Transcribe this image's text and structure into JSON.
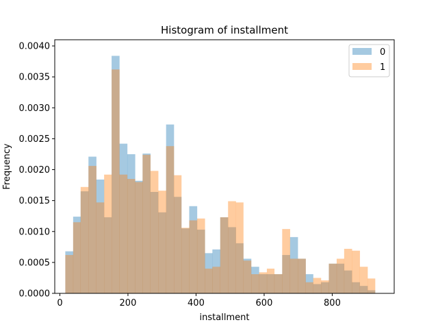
{
  "chart_data": {
    "type": "bar",
    "title": "Histogram of installment",
    "xlabel": "installment",
    "ylabel": "Frequency",
    "xlim": [
      -15,
      982
    ],
    "ylim": [
      0,
      0.0041
    ],
    "xticks": [
      0,
      200,
      400,
      600,
      800
    ],
    "yticks": [
      0.0,
      0.0005,
      0.001,
      0.0015,
      0.002,
      0.0025,
      0.003,
      0.0035,
      0.004
    ],
    "ytick_labels": [
      "0.0000",
      "0.0005",
      "0.0010",
      "0.0015",
      "0.0020",
      "0.0025",
      "0.0030",
      "0.0035",
      "0.0040"
    ],
    "legend_position": "top-right",
    "series": [
      {
        "name": "0",
        "color": "#1f77b4",
        "alpha": 0.4,
        "bins": [
          [
            16,
            39,
            0.00068
          ],
          [
            39,
            61,
            0.00124
          ],
          [
            61,
            84,
            0.00165
          ],
          [
            84,
            107,
            0.00221
          ],
          [
            107,
            130,
            0.00184
          ],
          [
            130,
            152,
            0.00123
          ],
          [
            152,
            175,
            0.00384
          ],
          [
            175,
            198,
            0.00242
          ],
          [
            198,
            221,
            0.00225
          ],
          [
            221,
            243,
            0.00182
          ],
          [
            243,
            266,
            0.00226
          ],
          [
            266,
            289,
            0.00164
          ],
          [
            289,
            312,
            0.00131
          ],
          [
            312,
            335,
            0.00273
          ],
          [
            335,
            357,
            0.00156
          ],
          [
            357,
            380,
            0.00105
          ],
          [
            380,
            403,
            0.00141
          ],
          [
            403,
            426,
            0.00103
          ],
          [
            426,
            448,
            0.00065
          ],
          [
            448,
            471,
            0.00071
          ],
          [
            471,
            494,
            0.00123
          ],
          [
            494,
            517,
            0.00107
          ],
          [
            517,
            539,
            0.00081
          ],
          [
            539,
            562,
            0.00056
          ],
          [
            562,
            585,
            0.00043
          ],
          [
            585,
            608,
            0.00031
          ],
          [
            608,
            630,
            0.00031
          ],
          [
            630,
            653,
            0.00031
          ],
          [
            653,
            676,
            0.00062
          ],
          [
            676,
            699,
            0.00091
          ],
          [
            699,
            722,
            0.00056
          ],
          [
            722,
            744,
            0.00031
          ],
          [
            744,
            767,
            0.00015
          ],
          [
            767,
            790,
            0.00018
          ],
          [
            790,
            813,
            0.00048
          ],
          [
            813,
            835,
            0.00048
          ],
          [
            835,
            858,
            0.00037
          ],
          [
            858,
            881,
            0.00018
          ],
          [
            881,
            904,
            0.00012
          ],
          [
            904,
            926,
            5e-05
          ]
        ]
      },
      {
        "name": "1",
        "color": "#ff7f0e",
        "alpha": 0.4,
        "bins": [
          [
            16,
            39,
            0.00062
          ],
          [
            39,
            61,
            0.00115
          ],
          [
            61,
            84,
            0.00172
          ],
          [
            84,
            107,
            0.00206
          ],
          [
            107,
            130,
            0.00147
          ],
          [
            130,
            152,
            0.00192
          ],
          [
            152,
            175,
            0.00362
          ],
          [
            175,
            198,
            0.00192
          ],
          [
            198,
            221,
            0.00185
          ],
          [
            221,
            243,
            0.0018
          ],
          [
            243,
            266,
            0.00224
          ],
          [
            266,
            289,
            0.00198
          ],
          [
            289,
            312,
            0.00166
          ],
          [
            312,
            335,
            0.00238
          ],
          [
            335,
            357,
            0.00191
          ],
          [
            357,
            380,
            0.00106
          ],
          [
            380,
            403,
            0.00118
          ],
          [
            403,
            426,
            0.00121
          ],
          [
            426,
            448,
            0.0004
          ],
          [
            448,
            471,
            0.00043
          ],
          [
            471,
            494,
            0.00123
          ],
          [
            494,
            517,
            0.00149
          ],
          [
            517,
            539,
            0.00147
          ],
          [
            539,
            562,
            0.00053
          ],
          [
            562,
            585,
            0.00031
          ],
          [
            585,
            608,
            0.00034
          ],
          [
            608,
            630,
            0.0004
          ],
          [
            630,
            653,
            0.00031
          ],
          [
            653,
            676,
            0.00104
          ],
          [
            676,
            699,
            0.00056
          ],
          [
            699,
            722,
            0.00056
          ],
          [
            722,
            744,
            0.00018
          ],
          [
            744,
            767,
            0.00025
          ],
          [
            767,
            790,
            0.00021
          ],
          [
            790,
            813,
            0.00048
          ],
          [
            813,
            835,
            0.00056
          ],
          [
            835,
            858,
            0.00072
          ],
          [
            858,
            881,
            0.00069
          ],
          [
            881,
            904,
            0.00043
          ],
          [
            904,
            926,
            0.00024
          ]
        ]
      }
    ]
  }
}
